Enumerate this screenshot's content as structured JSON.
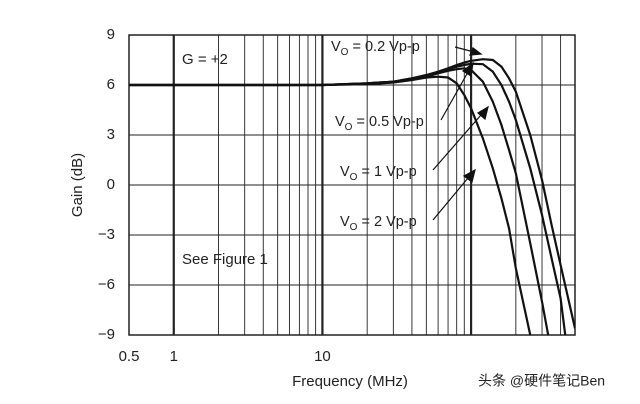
{
  "chart_data": {
    "type": "line",
    "x_label": "Frequency (MHz)",
    "y_label": "Gain (dB)",
    "xscale": "log",
    "xlim": [
      0.5,
      500
    ],
    "ylim": [
      -9,
      9
    ],
    "xticks": [
      0.5,
      1,
      10
    ],
    "xgrid": [
      1,
      2,
      3,
      4,
      5,
      6,
      7,
      8,
      9,
      10,
      20,
      30,
      40,
      50,
      60,
      70,
      80,
      90,
      100,
      200,
      300,
      400
    ],
    "yticks": [
      9,
      6,
      3,
      0,
      {
        "value": -3,
        "label": "−3"
      },
      {
        "value": -6,
        "label": "−6"
      },
      {
        "value": -9,
        "label": "−9"
      }
    ],
    "grid": true,
    "annotations": [
      "G = +2",
      "See Figure 1"
    ],
    "watermark": "头条 @硬件笔记Ben",
    "series": [
      {
        "name": "V",
        "name_sub": "O",
        "name_suffix": " = 0.2 Vp-p",
        "color": "#111111",
        "x": [
          0.5,
          1,
          2,
          5,
          10,
          20,
          30,
          40,
          50,
          60,
          70,
          80,
          90,
          100,
          120,
          140,
          160,
          180,
          200,
          250,
          300,
          350,
          400,
          500
        ],
        "values": [
          6,
          6,
          6,
          6,
          6,
          6.1,
          6.2,
          6.4,
          6.6,
          6.8,
          7.0,
          7.2,
          7.35,
          7.45,
          7.55,
          7.5,
          7.1,
          6.4,
          5.6,
          3.0,
          0.3,
          -2.5,
          -4.8,
          -8.6
        ]
      },
      {
        "name": "V",
        "name_sub": "O",
        "name_suffix": " = 0.5 Vp-p",
        "color": "#111111",
        "x": [
          0.5,
          1,
          2,
          5,
          10,
          20,
          30,
          40,
          50,
          60,
          70,
          80,
          90,
          100,
          120,
          140,
          160,
          180,
          200,
          250,
          300,
          350,
          400,
          430
        ],
        "values": [
          6,
          6,
          6,
          6,
          6,
          6.1,
          6.2,
          6.4,
          6.55,
          6.75,
          6.95,
          7.1,
          7.2,
          7.28,
          7.25,
          6.8,
          6.0,
          5.0,
          3.9,
          1.0,
          -1.8,
          -4.5,
          -6.8,
          -9
        ]
      },
      {
        "name": "V",
        "name_sub": "O",
        "name_suffix": " = 1 Vp-p",
        "color": "#111111",
        "x": [
          0.5,
          1,
          2,
          5,
          10,
          20,
          30,
          40,
          50,
          60,
          70,
          80,
          90,
          100,
          120,
          140,
          160,
          180,
          200,
          250,
          300,
          330
        ],
        "values": [
          6,
          6,
          6,
          6,
          6,
          6.1,
          6.2,
          6.35,
          6.5,
          6.7,
          6.85,
          6.95,
          7.0,
          6.9,
          6.2,
          5.0,
          3.6,
          2.1,
          0.7,
          -3.5,
          -7.0,
          -9
        ]
      },
      {
        "name": "V",
        "name_sub": "O",
        "name_suffix": " = 2 Vp-p",
        "color": "#111111",
        "x": [
          0.5,
          1,
          2,
          5,
          10,
          20,
          30,
          40,
          50,
          60,
          70,
          80,
          90,
          100,
          120,
          140,
          160,
          180,
          200,
          250
        ],
        "values": [
          6,
          6,
          6,
          6,
          6,
          6.05,
          6.15,
          6.3,
          6.45,
          6.5,
          6.45,
          6.1,
          5.4,
          4.6,
          2.8,
          1.0,
          -0.8,
          -2.6,
          -5.0,
          -9
        ]
      }
    ]
  }
}
